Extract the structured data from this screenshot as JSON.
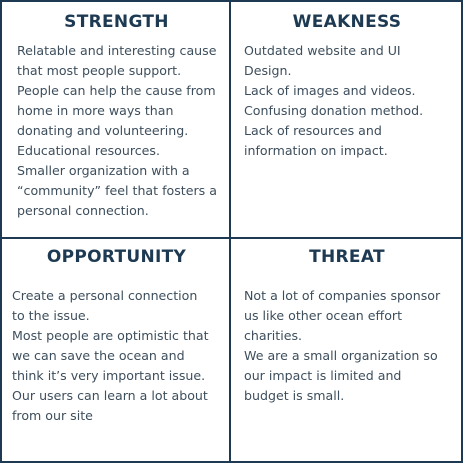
{
  "colors": {
    "heading": "#1d3a52",
    "body_text": "#3d4e5c",
    "border": "#1d3a52"
  },
  "quadrants": {
    "strength": {
      "title": "STRENGTH",
      "lines": [
        "Relatable and interesting cause",
        "that most people support.",
        "People can help the cause from",
        "home in more ways than",
        "donating and volunteering.",
        "Educational resources.",
        "Smaller organization with a",
        "“community” feel that fosters a",
        "personal connection."
      ]
    },
    "weakness": {
      "title": "WEAKNESS",
      "lines": [
        "Outdated website and UI",
        "Design.",
        "Lack of images and videos.",
        "Confusing donation method.",
        "Lack of resources and",
        "information on impact."
      ]
    },
    "opportunity": {
      "title": "OPPORTUNITY",
      "lines": [
        "Create a personal connection",
        "to the issue.",
        "Most people are optimistic that",
        "we can save the ocean and",
        "think it’s very important issue.",
        "Our users can learn a lot about",
        "from our site"
      ]
    },
    "threat": {
      "title": "THREAT",
      "lines": [
        "Not a lot of  companies sponsor",
        "us like other ocean effort",
        "charities.",
        "We are a small organization so",
        "our impact is limited and",
        "budget is small."
      ]
    }
  }
}
